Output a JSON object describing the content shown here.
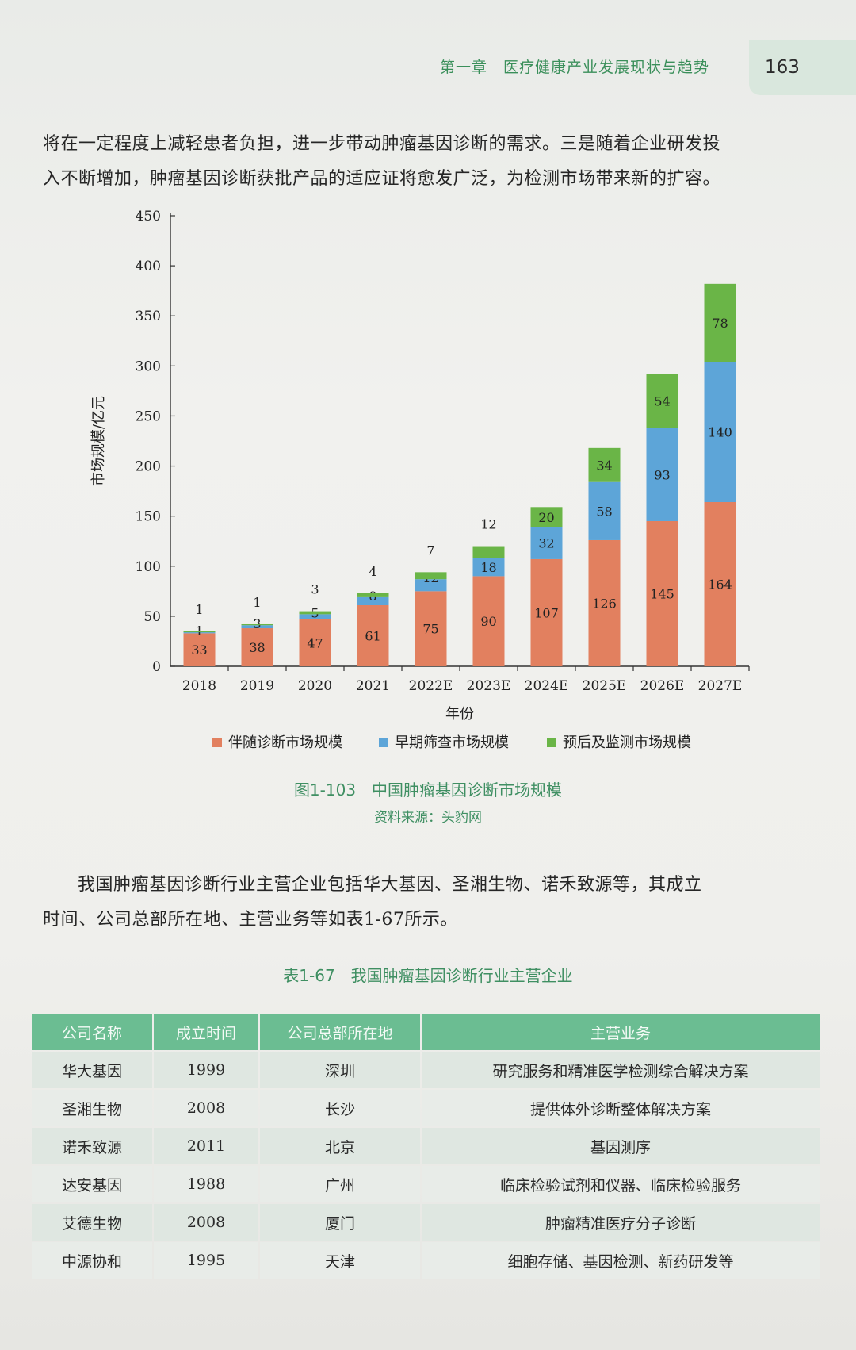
{
  "header": {
    "chapter": "第一章　医疗健康产业发展现状与趋势",
    "page_number": "163"
  },
  "paragraph1": {
    "line1": "将在一定程度上减轻患者负担，进一步带动肿瘤基因诊断的需求。三是随着企业研发投",
    "line2": "入不断增加，肿瘤基因诊断获批产品的适应证将愈发广泛，为检测市场带来新的扩容。"
  },
  "chart_data": {
    "type": "bar",
    "stacked": true,
    "categories": [
      "2018",
      "2019",
      "2020",
      "2021",
      "2022E",
      "2023E",
      "2024E",
      "2025E",
      "2026E",
      "2027E"
    ],
    "series": [
      {
        "name": "伴随诊断市场规模",
        "color": "#e2805f",
        "values": [
          33,
          38,
          47,
          61,
          75,
          90,
          107,
          126,
          145,
          164
        ]
      },
      {
        "name": "早期筛查市场规模",
        "color": "#5da5d8",
        "values": [
          1,
          3,
          5,
          8,
          12,
          18,
          32,
          58,
          93,
          140
        ]
      },
      {
        "name": "预后及监测市场规模",
        "color": "#6ab547",
        "values": [
          1,
          1,
          3,
          4,
          7,
          12,
          20,
          34,
          54,
          78
        ]
      }
    ],
    "xlabel": "年份",
    "ylabel": "市场规模/亿元",
    "ylim": [
      0,
      450
    ],
    "yticks": [
      0,
      50,
      100,
      150,
      200,
      250,
      300,
      350,
      400,
      450
    ],
    "legend_position": "bottom",
    "grid": false
  },
  "figure": {
    "caption": "图1-103　中国肿瘤基因诊断市场规模",
    "source": "资料来源：头豹网"
  },
  "paragraph2": {
    "line1": "我国肿瘤基因诊断行业主营企业包括华大基因、圣湘生物、诺禾致源等，其成立",
    "line2": "时间、公司总部所在地、主营业务等如表1-67所示。"
  },
  "table": {
    "caption": "表1-67　我国肿瘤基因诊断行业主营企业",
    "headers": [
      "公司名称",
      "成立时间",
      "公司总部所在地",
      "主营业务"
    ],
    "rows": [
      [
        "华大基因",
        "1999",
        "深圳",
        "研究服务和精准医学检测综合解决方案"
      ],
      [
        "圣湘生物",
        "2008",
        "长沙",
        "提供体外诊断整体解决方案"
      ],
      [
        "诺禾致源",
        "2011",
        "北京",
        "基因测序"
      ],
      [
        "达安基因",
        "1988",
        "广州",
        "临床检验试剂和仪器、临床检验服务"
      ],
      [
        "艾德生物",
        "2008",
        "厦门",
        "肿瘤精准医疗分子诊断"
      ],
      [
        "中源协和",
        "1995",
        "天津",
        "细胞存储、基因检测、新药研发等"
      ]
    ]
  }
}
